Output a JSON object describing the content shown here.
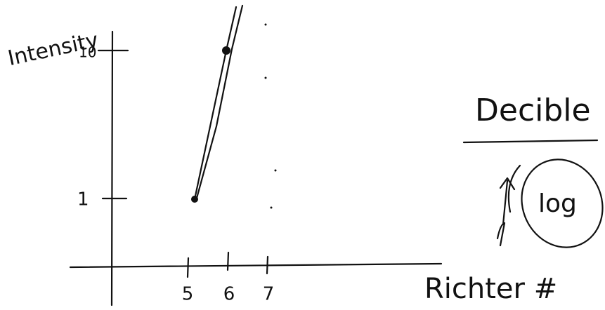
{
  "y_axis": {
    "label": "Intensity",
    "ticks": [
      "10",
      "1"
    ]
  },
  "x_axis": {
    "label": "Richter #",
    "ticks": [
      "5",
      "6",
      "7"
    ]
  },
  "notes": {
    "title": "Decible",
    "circled": "log"
  }
}
